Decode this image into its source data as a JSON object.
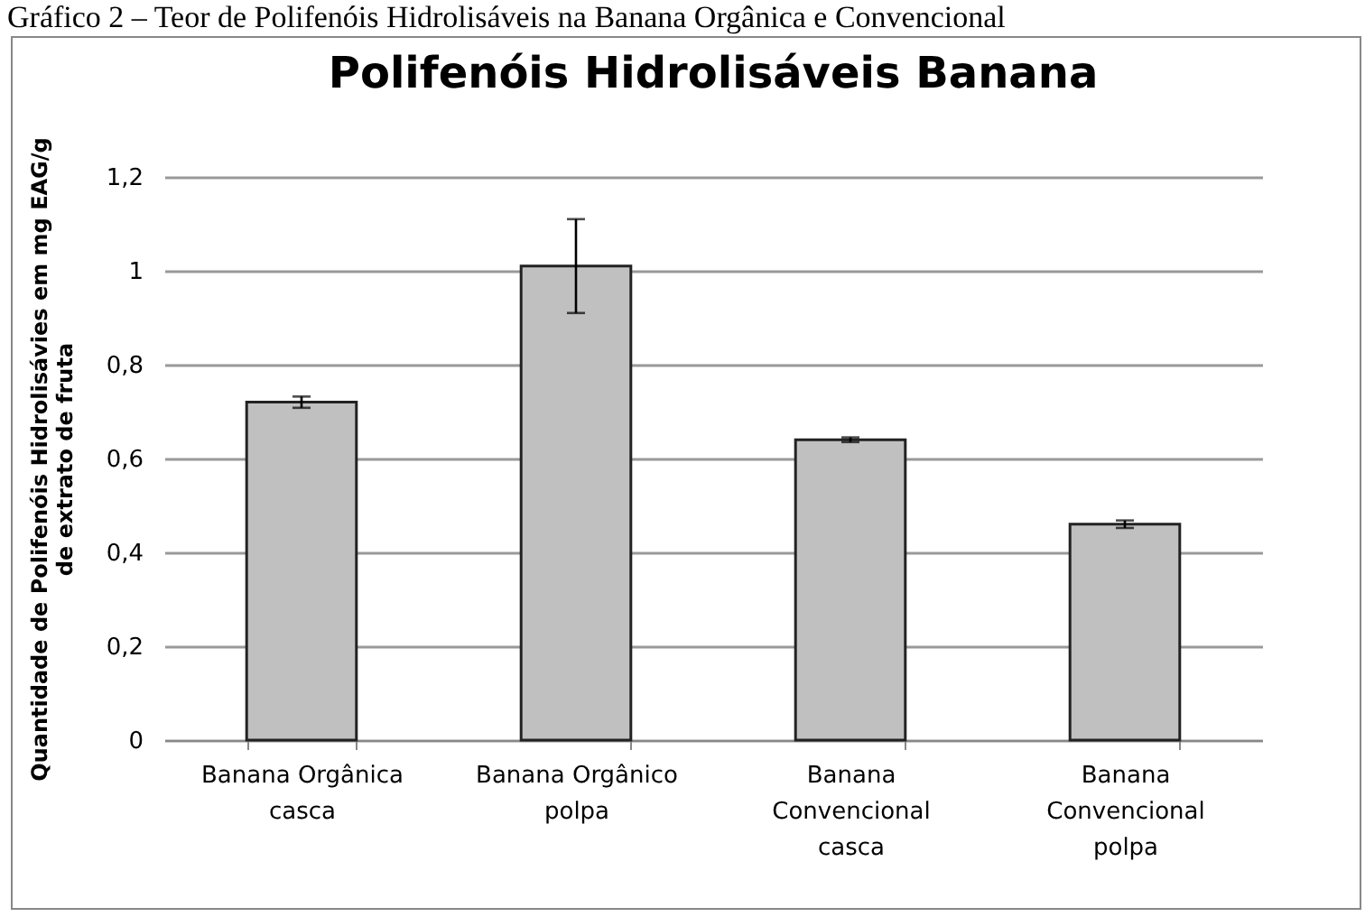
{
  "chart_data": {
    "type": "bar",
    "title": "Polifenóis Hidrolisáveis Banana",
    "ylabel": "Quantidade de Polifenóis Hidrolisávies em mg EAG/g de extrato de fruta",
    "annotations": [
      "Gráfico 2 – Teor de Polifenóis Hidrolisáveis na Banana Orgânica e Convencional"
    ],
    "categories": [
      "Banana Orgânica casca",
      "Banana Orgânico polpa",
      "Banana Convencional casca",
      "Banana Convencional polpa"
    ],
    "values": [
      0.72,
      1.01,
      0.64,
      0.46
    ],
    "errors": [
      0.012,
      0.1,
      0.005,
      0.008
    ],
    "color": "#c0c0c0",
    "ylim": [
      0,
      1.2
    ],
    "yticks": [
      {
        "value": 0,
        "label": "0"
      },
      {
        "value": 0.2,
        "label": "0,2"
      },
      {
        "value": 0.4,
        "label": "0,4"
      },
      {
        "value": 0.6,
        "label": "0,6"
      },
      {
        "value": 0.8,
        "label": "0,8"
      },
      {
        "value": 1,
        "label": "1"
      },
      {
        "value": 1.2,
        "label": "1,2"
      }
    ],
    "grid": "y"
  }
}
